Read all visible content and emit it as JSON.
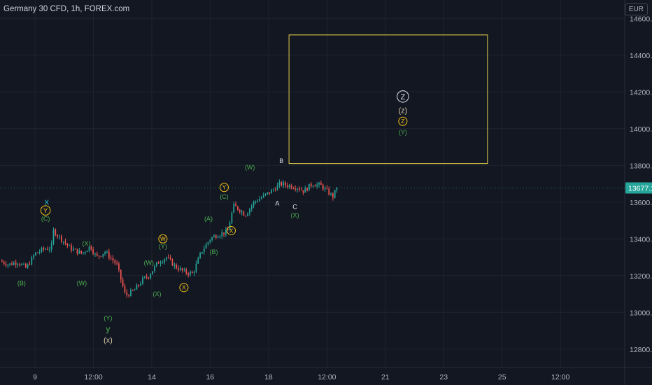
{
  "header": {
    "title": "Germany 30 CFD, 1h, FOREX.com",
    "currency": "EUR"
  },
  "colors": {
    "background": "#131722",
    "grid": "#1f2430",
    "up": "#26a69a",
    "down": "#ef5350",
    "axis_text": "#b2b5be",
    "price_tag": "#26a69a",
    "box": "#e5d24a",
    "label_green": "#4caf50",
    "label_yellow": "#f5c518",
    "label_teal": "#26c6da",
    "label_white": "#e0e3eb",
    "label_tan": "#d6c7a6"
  },
  "chart_data": {
    "type": "candlestick",
    "title": "Germany 30 CFD, 1h, FOREX.com",
    "ylim": [
      12700,
      14700
    ],
    "y_ticks": [
      "14600.0",
      "14400.0",
      "14200.0",
      "14000.0",
      "13800.0",
      "13600.0",
      "13400.0",
      "13200.0",
      "13000.0",
      "12800.0"
    ],
    "y_tick_values": [
      14600,
      14400,
      14200,
      14000,
      13800,
      13600,
      13400,
      13200,
      13000,
      12800
    ],
    "x_ticks": [
      "9",
      "12:00",
      "14",
      "16",
      "18",
      "12:00",
      "21",
      "23",
      "25",
      "12:00"
    ],
    "x_tick_positions": [
      2,
      3,
      4,
      5,
      6,
      7,
      8,
      9,
      10,
      11
    ],
    "x_range": [
      1.4,
      12.1
    ],
    "last_price": "13677.1",
    "last_price_value": 13677.1,
    "price_path": [
      [
        1.4,
        13280
      ],
      [
        1.55,
        13260
      ],
      [
        1.7,
        13275
      ],
      [
        1.85,
        13240
      ],
      [
        2.0,
        13320
      ],
      [
        2.15,
        13345
      ],
      [
        2.28,
        13350
      ],
      [
        2.3,
        13450
      ],
      [
        2.45,
        13400
      ],
      [
        2.6,
        13350
      ],
      [
        2.8,
        13320
      ],
      [
        2.95,
        13360
      ],
      [
        3.05,
        13300
      ],
      [
        3.2,
        13330
      ],
      [
        3.4,
        13260
      ],
      [
        3.55,
        13090
      ],
      [
        3.7,
        13120
      ],
      [
        3.85,
        13180
      ],
      [
        3.95,
        13200
      ],
      [
        4.1,
        13270
      ],
      [
        4.25,
        13300
      ],
      [
        4.4,
        13250
      ],
      [
        4.55,
        13220
      ],
      [
        4.7,
        13210
      ],
      [
        4.85,
        13330
      ],
      [
        5.0,
        13400
      ],
      [
        5.1,
        13420
      ],
      [
        5.2,
        13430
      ],
      [
        5.3,
        13440
      ],
      [
        5.4,
        13580
      ],
      [
        5.5,
        13560
      ],
      [
        5.6,
        13530
      ],
      [
        5.75,
        13600
      ],
      [
        5.9,
        13630
      ],
      [
        6.05,
        13660
      ],
      [
        6.2,
        13700
      ],
      [
        6.35,
        13690
      ],
      [
        6.5,
        13680
      ],
      [
        6.6,
        13660
      ],
      [
        6.75,
        13700
      ],
      [
        6.9,
        13690
      ],
      [
        7.0,
        13660
      ],
      [
        7.1,
        13630
      ],
      [
        7.17,
        13677
      ]
    ],
    "target_box": {
      "x_start": 6.35,
      "x_end": 9.75,
      "y_low": 13810,
      "y_high": 14510
    },
    "annotations": [
      {
        "text": "(B)",
        "x": 1.77,
        "y": 13160,
        "color": "label_green",
        "style": "text",
        "size": 9
      },
      {
        "text": "X",
        "x": 2.2,
        "y": 13600,
        "color": "label_teal",
        "style": "text",
        "size": 10
      },
      {
        "text": "Y",
        "x": 2.18,
        "y": 13555,
        "color": "label_yellow",
        "style": "circle",
        "size": 9
      },
      {
        "text": "(C)",
        "x": 2.18,
        "y": 13510,
        "color": "label_green",
        "style": "text",
        "size": 9
      },
      {
        "text": "(X)",
        "x": 2.88,
        "y": 13375,
        "color": "label_green",
        "style": "text",
        "size": 9
      },
      {
        "text": "(W)",
        "x": 2.8,
        "y": 13160,
        "color": "label_green",
        "style": "text",
        "size": 9
      },
      {
        "text": "(Y)",
        "x": 3.25,
        "y": 12970,
        "color": "label_green",
        "style": "text",
        "size": 9
      },
      {
        "text": "y",
        "x": 3.25,
        "y": 12910,
        "color": "label_green",
        "style": "text",
        "size": 12
      },
      {
        "text": "(x)",
        "x": 3.25,
        "y": 12850,
        "color": "label_tan",
        "style": "text",
        "size": 11
      },
      {
        "text": "(W)",
        "x": 3.95,
        "y": 13270,
        "color": "label_green",
        "style": "text",
        "size": 9
      },
      {
        "text": "(X)",
        "x": 4.09,
        "y": 13100,
        "color": "label_green",
        "style": "text",
        "size": 9
      },
      {
        "text": "W",
        "x": 4.19,
        "y": 13400,
        "color": "label_yellow",
        "style": "circle",
        "size": 8
      },
      {
        "text": "(Y)",
        "x": 4.19,
        "y": 13360,
        "color": "label_green",
        "style": "text",
        "size": 9
      },
      {
        "text": "X",
        "x": 4.55,
        "y": 13135,
        "color": "label_yellow",
        "style": "circle",
        "size": 8
      },
      {
        "text": "(A)",
        "x": 4.97,
        "y": 13510,
        "color": "label_green",
        "style": "text",
        "size": 9
      },
      {
        "text": "(B)",
        "x": 5.06,
        "y": 13330,
        "color": "label_green",
        "style": "text",
        "size": 9
      },
      {
        "text": "Y",
        "x": 5.24,
        "y": 13680,
        "color": "label_yellow",
        "style": "circle",
        "size": 8
      },
      {
        "text": "(C)",
        "x": 5.24,
        "y": 13630,
        "color": "label_green",
        "style": "text",
        "size": 9
      },
      {
        "text": "X",
        "x": 5.36,
        "y": 13445,
        "color": "label_yellow",
        "style": "circle",
        "size": 8
      },
      {
        "text": "(W)",
        "x": 5.68,
        "y": 13790,
        "color": "label_green",
        "style": "text",
        "size": 9
      },
      {
        "text": "B",
        "x": 6.22,
        "y": 13825,
        "color": "label_white",
        "style": "text",
        "size": 9
      },
      {
        "text": "A",
        "x": 6.15,
        "y": 13595,
        "color": "label_white",
        "style": "text",
        "size": 9
      },
      {
        "text": "C",
        "x": 6.45,
        "y": 13575,
        "color": "label_white",
        "style": "text",
        "size": 9
      },
      {
        "text": "(X)",
        "x": 6.45,
        "y": 13530,
        "color": "label_green",
        "style": "text",
        "size": 9
      },
      {
        "text": "Z",
        "x": 8.3,
        "y": 14175,
        "color": "label_white",
        "style": "circle",
        "size": 11
      },
      {
        "text": "(z)",
        "x": 8.3,
        "y": 14100,
        "color": "label_tan",
        "style": "text",
        "size": 11
      },
      {
        "text": "Z",
        "x": 8.3,
        "y": 14040,
        "color": "label_yellow",
        "style": "circle",
        "size": 8
      },
      {
        "text": "(Y)",
        "x": 8.3,
        "y": 13980,
        "color": "label_green",
        "style": "text",
        "size": 9
      }
    ]
  }
}
